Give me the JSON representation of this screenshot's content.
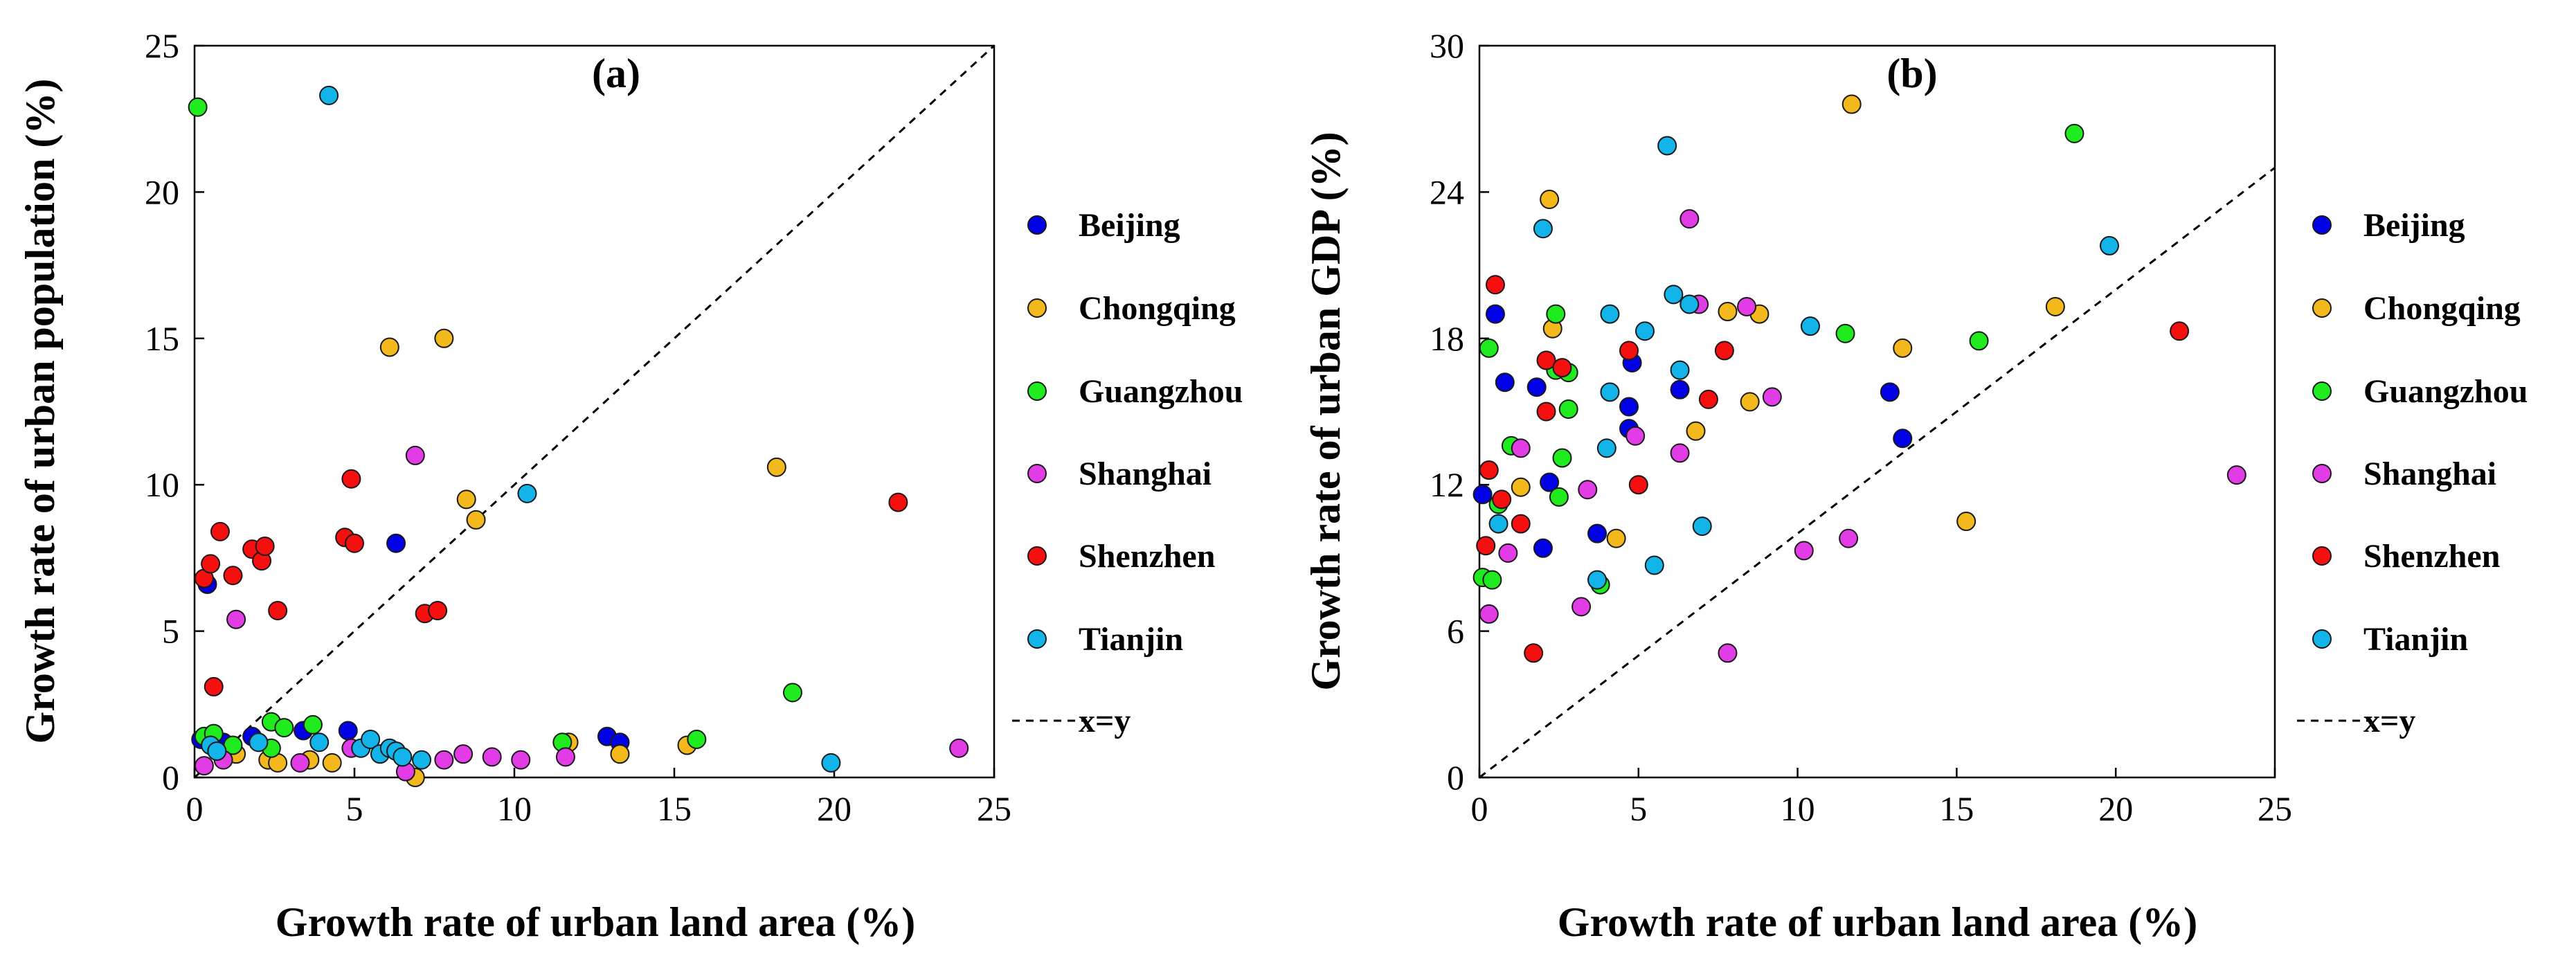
{
  "colors": {
    "Beijing": "#0000E6",
    "Chongqing": "#F2B81C",
    "Guangzhou": "#1FEB1F",
    "Shanghai": "#E23CE6",
    "Shenzhen": "#F50F0F",
    "Tianjin": "#12B4EA"
  },
  "chart_data": [
    {
      "type": "scatter",
      "panel_label": "(a)",
      "xlabel": "Growth rate of urban land area  (%)",
      "ylabel": "Growth rate of urban population (%)",
      "xlim": [
        0,
        25
      ],
      "ylim": [
        0,
        25
      ],
      "xticks": [
        0,
        5,
        10,
        15,
        20,
        25
      ],
      "yticks": [
        0,
        5,
        10,
        15,
        20,
        25
      ],
      "reference_line": "x=y",
      "grid": false,
      "legend_position": "right",
      "series": [
        {
          "name": "Beijing",
          "points": [
            [
              0.2,
              1.3
            ],
            [
              0.4,
              6.6
            ],
            [
              0.9,
              1.2
            ],
            [
              1.8,
              1.4
            ],
            [
              3.4,
              1.6
            ],
            [
              4.8,
              1.6
            ],
            [
              6.3,
              8.0
            ],
            [
              12.9,
              1.4
            ],
            [
              13.3,
              1.2
            ]
          ]
        },
        {
          "name": "Chongqing",
          "points": [
            [
              1.3,
              0.8
            ],
            [
              2.3,
              0.6
            ],
            [
              2.6,
              0.5
            ],
            [
              3.6,
              0.6
            ],
            [
              4.3,
              0.5
            ],
            [
              6.1,
              14.7
            ],
            [
              7.8,
              15.0
            ],
            [
              6.9,
              0.0
            ],
            [
              8.5,
              9.5
            ],
            [
              8.8,
              8.8
            ],
            [
              11.7,
              1.2
            ],
            [
              13.3,
              0.8
            ],
            [
              15.4,
              1.1
            ],
            [
              18.2,
              10.6
            ]
          ]
        },
        {
          "name": "Guangzhou",
          "points": [
            [
              0.1,
              22.9
            ],
            [
              0.3,
              1.4
            ],
            [
              0.6,
              1.5
            ],
            [
              1.2,
              1.1
            ],
            [
              2.4,
              1.9
            ],
            [
              2.8,
              1.7
            ],
            [
              2.4,
              1.0
            ],
            [
              3.7,
              1.8
            ],
            [
              11.5,
              1.2
            ],
            [
              15.7,
              1.3
            ],
            [
              18.7,
              2.9
            ]
          ]
        },
        {
          "name": "Shanghai",
          "points": [
            [
              0.3,
              0.4
            ],
            [
              0.9,
              0.6
            ],
            [
              1.3,
              5.4
            ],
            [
              3.3,
              0.5
            ],
            [
              4.9,
              1.0
            ],
            [
              6.6,
              0.2
            ],
            [
              6.9,
              11.0
            ],
            [
              7.8,
              0.6
            ],
            [
              8.4,
              0.8
            ],
            [
              9.3,
              0.7
            ],
            [
              10.2,
              0.6
            ],
            [
              11.6,
              0.7
            ],
            [
              23.9,
              1.0
            ]
          ]
        },
        {
          "name": "Shenzhen",
          "points": [
            [
              0.3,
              6.8
            ],
            [
              0.5,
              7.3
            ],
            [
              0.6,
              3.1
            ],
            [
              0.8,
              8.4
            ],
            [
              1.2,
              6.9
            ],
            [
              1.8,
              7.8
            ],
            [
              2.1,
              7.4
            ],
            [
              2.2,
              7.9
            ],
            [
              2.6,
              5.7
            ],
            [
              4.7,
              8.2
            ],
            [
              4.9,
              10.2
            ],
            [
              5.0,
              8.0
            ],
            [
              7.2,
              5.6
            ],
            [
              7.6,
              5.7
            ],
            [
              22.0,
              9.4
            ]
          ]
        },
        {
          "name": "Tianjin",
          "points": [
            [
              0.5,
              1.1
            ],
            [
              0.7,
              0.9
            ],
            [
              2.0,
              1.2
            ],
            [
              3.9,
              1.2
            ],
            [
              4.2,
              23.3
            ],
            [
              5.2,
              1.0
            ],
            [
              5.5,
              1.3
            ],
            [
              5.8,
              0.8
            ],
            [
              6.1,
              1.0
            ],
            [
              6.3,
              0.9
            ],
            [
              6.5,
              0.7
            ],
            [
              7.1,
              0.6
            ],
            [
              10.4,
              9.7
            ],
            [
              19.9,
              0.5
            ]
          ]
        }
      ]
    },
    {
      "type": "scatter",
      "panel_label": "(b)",
      "xlabel": "Growth rate of urban land area (%)",
      "ylabel": "Growth rate of urban GDP (%)",
      "xlim": [
        0,
        25
      ],
      "ylim": [
        0,
        30
      ],
      "xticks": [
        0,
        5,
        10,
        15,
        20,
        25
      ],
      "yticks": [
        0,
        6,
        12,
        18,
        24,
        30
      ],
      "reference_line": "x=y",
      "grid": false,
      "legend_position": "right",
      "series": [
        {
          "name": "Beijing",
          "points": [
            [
              0.1,
              11.6
            ],
            [
              0.5,
              19.0
            ],
            [
              0.8,
              16.2
            ],
            [
              1.8,
              16.0
            ],
            [
              2.0,
              9.4
            ],
            [
              2.2,
              12.1
            ],
            [
              3.7,
              10.0
            ],
            [
              4.7,
              15.2
            ],
            [
              4.7,
              14.3
            ],
            [
              4.8,
              17.0
            ],
            [
              6.3,
              15.9
            ],
            [
              12.9,
              15.8
            ],
            [
              13.3,
              13.9
            ]
          ]
        },
        {
          "name": "Chongqing",
          "points": [
            [
              1.3,
              11.9
            ],
            [
              2.2,
              23.7
            ],
            [
              2.3,
              18.4
            ],
            [
              4.3,
              9.8
            ],
            [
              6.8,
              14.2
            ],
            [
              7.8,
              19.1
            ],
            [
              8.5,
              15.4
            ],
            [
              8.8,
              19.0
            ],
            [
              11.7,
              27.6
            ],
            [
              13.3,
              17.6
            ],
            [
              15.3,
              10.5
            ],
            [
              18.1,
              19.3
            ]
          ]
        },
        {
          "name": "Guangzhou",
          "points": [
            [
              0.1,
              8.2
            ],
            [
              0.3,
              17.6
            ],
            [
              0.4,
              8.1
            ],
            [
              0.6,
              11.2
            ],
            [
              1.0,
              13.6
            ],
            [
              2.4,
              16.7
            ],
            [
              2.4,
              19.0
            ],
            [
              2.5,
              11.5
            ],
            [
              2.6,
              13.1
            ],
            [
              2.8,
              15.1
            ],
            [
              2.8,
              16.6
            ],
            [
              3.8,
              7.9
            ],
            [
              11.5,
              18.2
            ],
            [
              15.7,
              17.9
            ],
            [
              18.7,
              26.4
            ]
          ]
        },
        {
          "name": "Shanghai",
          "points": [
            [
              0.3,
              6.7
            ],
            [
              0.9,
              9.2
            ],
            [
              1.3,
              13.5
            ],
            [
              3.2,
              7.0
            ],
            [
              3.4,
              11.8
            ],
            [
              4.9,
              14.0
            ],
            [
              6.3,
              13.3
            ],
            [
              6.6,
              22.9
            ],
            [
              6.9,
              19.4
            ],
            [
              7.8,
              5.1
            ],
            [
              8.4,
              19.3
            ],
            [
              9.2,
              15.6
            ],
            [
              10.2,
              9.3
            ],
            [
              11.6,
              9.8
            ],
            [
              23.8,
              12.4
            ]
          ]
        },
        {
          "name": "Shenzhen",
          "points": [
            [
              0.2,
              9.5
            ],
            [
              0.3,
              12.6
            ],
            [
              0.5,
              20.2
            ],
            [
              0.7,
              11.4
            ],
            [
              1.3,
              10.4
            ],
            [
              1.7,
              5.1
            ],
            [
              2.1,
              15.0
            ],
            [
              2.1,
              17.1
            ],
            [
              2.6,
              16.8
            ],
            [
              4.7,
              17.5
            ],
            [
              5.0,
              12.0
            ],
            [
              7.2,
              15.5
            ],
            [
              7.7,
              17.5
            ],
            [
              22.0,
              18.3
            ]
          ]
        },
        {
          "name": "Tianjin",
          "points": [
            [
              0.6,
              10.4
            ],
            [
              2.0,
              22.5
            ],
            [
              3.7,
              8.1
            ],
            [
              4.0,
              13.5
            ],
            [
              4.1,
              19.0
            ],
            [
              4.1,
              15.8
            ],
            [
              5.2,
              18.3
            ],
            [
              5.5,
              8.7
            ],
            [
              5.9,
              25.9
            ],
            [
              6.1,
              19.8
            ],
            [
              6.3,
              16.7
            ],
            [
              6.6,
              19.4
            ],
            [
              7.0,
              10.3
            ],
            [
              10.4,
              18.5
            ],
            [
              19.8,
              21.8
            ]
          ]
        }
      ]
    }
  ],
  "legend": {
    "entries": [
      "Beijing",
      "Chongqing",
      "Guangzhou",
      "Shanghai",
      "Shenzhen",
      "Tianjin"
    ],
    "line_label": "x=y"
  }
}
